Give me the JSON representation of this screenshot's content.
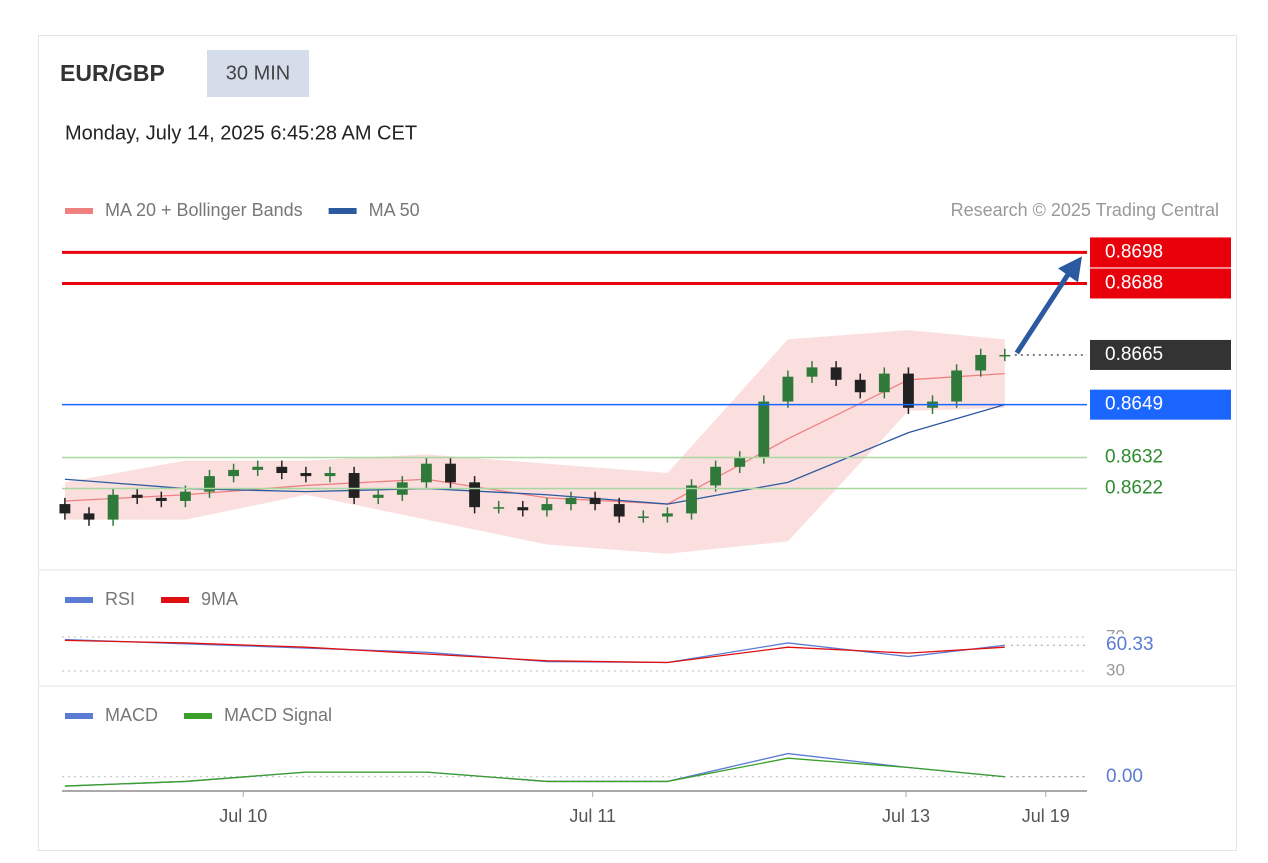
{
  "header": {
    "title": "EUR/GBP",
    "timeframe": "30 MIN",
    "date": "Monday, July 14, 2025 6:45:28 AM CET"
  },
  "chart_data": [
    {
      "type": "candlestick",
      "credit": "Research © 2025 Trading Central",
      "xlim": [
        -0.12,
        42.41
      ],
      "ylim": [
        0.8599,
        0.8702
      ],
      "up_color": "#2f7a3a",
      "down_color": "#222222",
      "open": [
        0.8617,
        0.8614,
        0.8612,
        0.862,
        0.8619,
        0.8618,
        0.8621,
        0.8626,
        0.8628,
        0.8629,
        0.8627,
        0.8626,
        0.8627,
        0.8619,
        0.862,
        0.8624,
        0.863,
        0.8624,
        0.8616,
        0.8616,
        0.8615,
        0.8617,
        0.8619,
        0.8617,
        0.8613,
        0.8613,
        0.8614,
        0.8623,
        0.8629,
        0.8632,
        0.865,
        0.8658,
        0.8661,
        0.8657,
        0.8653,
        0.8659,
        0.8648,
        0.865,
        0.866,
        0.8665
      ],
      "high": [
        0.8619,
        0.8616,
        0.8622,
        0.8622,
        0.8621,
        0.8623,
        0.8628,
        0.863,
        0.8631,
        0.8631,
        0.8629,
        0.8629,
        0.8629,
        0.8622,
        0.8626,
        0.8632,
        0.8632,
        0.8626,
        0.8618,
        0.8618,
        0.8619,
        0.8621,
        0.8621,
        0.8619,
        0.8615,
        0.8616,
        0.8625,
        0.8631,
        0.8634,
        0.8652,
        0.866,
        0.8663,
        0.8663,
        0.8659,
        0.8661,
        0.8661,
        0.8652,
        0.8662,
        0.8667,
        0.8667
      ],
      "low": [
        0.8612,
        0.861,
        0.861,
        0.8617,
        0.8616,
        0.8616,
        0.8619,
        0.8624,
        0.8626,
        0.8625,
        0.8624,
        0.8624,
        0.8617,
        0.8617,
        0.8618,
        0.8622,
        0.8622,
        0.8614,
        0.8614,
        0.8613,
        0.8613,
        0.8615,
        0.8615,
        0.8611,
        0.8611,
        0.8611,
        0.8612,
        0.8621,
        0.8627,
        0.863,
        0.8648,
        0.8656,
        0.8655,
        0.8651,
        0.8651,
        0.8646,
        0.8646,
        0.8648,
        0.8658,
        0.8663
      ],
      "close": [
        0.8614,
        0.8612,
        0.862,
        0.8619,
        0.8618,
        0.8621,
        0.8626,
        0.8628,
        0.8629,
        0.8627,
        0.8626,
        0.8627,
        0.8619,
        0.862,
        0.8624,
        0.863,
        0.8624,
        0.8616,
        0.8616,
        0.8615,
        0.8617,
        0.8619,
        0.8617,
        0.8613,
        0.8613,
        0.8614,
        0.8623,
        0.8629,
        0.8632,
        0.865,
        0.8658,
        0.8661,
        0.8657,
        0.8653,
        0.8659,
        0.8648,
        0.865,
        0.866,
        0.8665,
        0.8665
      ],
      "series": [
        {
          "name": "MA 20 + Bollinger Bands",
          "color": "#f08080",
          "x": [
            0,
            5,
            10,
            15,
            20,
            25,
            30,
            35,
            39
          ],
          "values": [
            0.8618,
            0.862,
            0.8623,
            0.8625,
            0.8619,
            0.8617,
            0.8638,
            0.8657,
            0.8659
          ],
          "upper": [
            0.8624,
            0.8631,
            0.8631,
            0.8633,
            0.863,
            0.8627,
            0.867,
            0.8673,
            0.867
          ],
          "lower": [
            0.8612,
            0.8612,
            0.862,
            0.8612,
            0.8604,
            0.8601,
            0.8605,
            0.8647,
            0.8648
          ]
        },
        {
          "name": "MA 50",
          "color": "#2c5aa0",
          "x": [
            0,
            5,
            10,
            15,
            20,
            25,
            30,
            35,
            39
          ],
          "values": [
            0.8625,
            0.8622,
            0.8621,
            0.8622,
            0.862,
            0.8617,
            0.8624,
            0.864,
            0.8649
          ]
        }
      ],
      "levels": [
        {
          "value": 0.8698,
          "color": "#e8000b",
          "style": "box"
        },
        {
          "value": 0.8688,
          "color": "#e8000b",
          "style": "box"
        },
        {
          "value": 0.8665,
          "color": "#333333",
          "style": "current"
        },
        {
          "value": 0.8649,
          "color": "#1a66ff",
          "style": "box"
        },
        {
          "value": 0.8632,
          "color": "#2e8b2e",
          "style": "plain"
        },
        {
          "value": 0.8622,
          "color": "#2e8b2e",
          "style": "plain"
        }
      ]
    },
    {
      "type": "line",
      "xlim": [
        -0.12,
        42.41
      ],
      "ylim": [
        10,
        90
      ],
      "yticks": [
        30,
        70
      ],
      "x": [
        0,
        5,
        10,
        15,
        20,
        25,
        30,
        35,
        39
      ],
      "series": [
        {
          "name": "RSI",
          "color": "#5b7bd5",
          "values": [
            67,
            62,
            57,
            52,
            41,
            40,
            63,
            47,
            60.33
          ],
          "value_labels": [
            null,
            null,
            null,
            null,
            null,
            null,
            null,
            null,
            "60.33"
          ]
        },
        {
          "name": "9MA",
          "color": "#e01010",
          "values": [
            66,
            63,
            58,
            50,
            42,
            40,
            58,
            51,
            58
          ]
        }
      ]
    },
    {
      "type": "line",
      "xlim": [
        -0.12,
        42.41
      ],
      "ylim": [
        -0.0005,
        0.0009
      ],
      "yticks": [
        0
      ],
      "x": [
        0,
        5,
        10,
        15,
        20,
        25,
        30,
        35,
        39
      ],
      "xticks": [
        {
          "value": 7.4,
          "label": "Jul 10"
        },
        {
          "value": 21.9,
          "label": "Jul 11"
        },
        {
          "value": 34.9,
          "label": "Jul 13"
        },
        {
          "value": 40.7,
          "label": "Jul 19"
        }
      ],
      "series": [
        {
          "name": "MACD",
          "color": "#5b7bd5",
          "values": [
            -0.0002,
            -0.0001,
            0.0001,
            0.0001,
            -0.0001,
            -0.0001,
            0.0005,
            0.0002,
            0
          ],
          "value_labels": [
            null,
            null,
            null,
            null,
            null,
            null,
            null,
            null,
            "0.00"
          ]
        },
        {
          "name": "MACD Signal",
          "color": "#3aa02a",
          "values": [
            -0.0002,
            -0.0001,
            0.0001,
            0.0001,
            -0.0001,
            -0.0001,
            0.0004,
            0.0002,
            0
          ]
        }
      ]
    }
  ]
}
